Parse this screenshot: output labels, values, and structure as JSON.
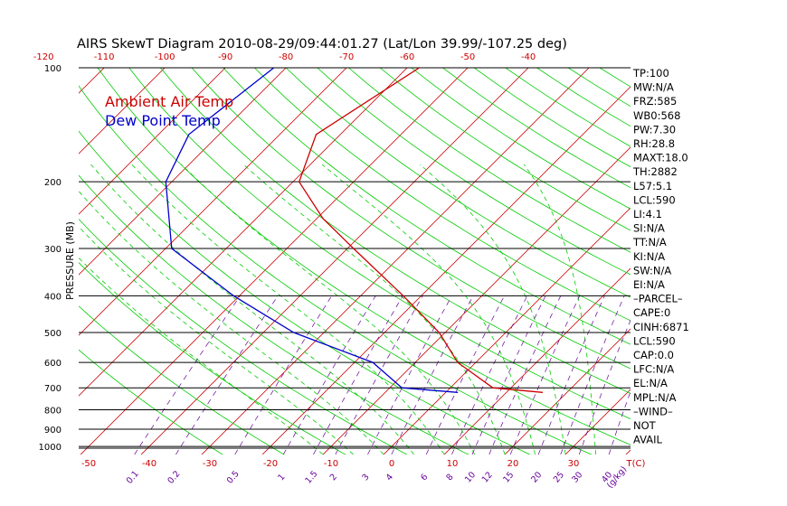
{
  "title": "AIRS SkewT Diagram 2010-08-29/09:44:01.27 (Lat/Lon 39.99/-107.25 deg)",
  "legend": {
    "ambient": "Ambient Air Temp",
    "dewpoint": "Dew Point Temp"
  },
  "colors": {
    "ambient": "#cc0000",
    "dewpoint": "#0000cc",
    "isotherm": "#cc0000",
    "dry_adiabat": "#00cc00",
    "moist_adiabat": "#00cc00",
    "mixing_ratio": "#660099",
    "isobar": "#000000",
    "top_temp_label": "#cc0000",
    "bottom_temp_label": "#cc0000",
    "mixing_label": "#660099"
  },
  "chart_data": {
    "type": "line",
    "title": "AIRS SkewT Diagram 2010-08-29/09:44:01.27 (Lat/Lon 39.99/-107.25 deg)",
    "ylabel": "PRESSURE (MB)",
    "yscale": "log",
    "ylim": [
      1050,
      100
    ],
    "xlim_bottom_temp_c": [
      -50,
      40
    ],
    "pressure_ticks": [
      100,
      200,
      300,
      400,
      500,
      600,
      700,
      800,
      900,
      1000
    ],
    "bottom_temp_ticks": [
      "-50",
      "-40",
      "-30",
      "-20",
      "-10",
      "0",
      "10",
      "20",
      "30",
      "T(C)"
    ],
    "top_temp_ticks": [
      "-120",
      "-110",
      "-100",
      "-90",
      "-80",
      "-70",
      "-60",
      "-50",
      "-40"
    ],
    "mixing_ratio_ticks": [
      "0.1",
      "0.2",
      "0.5",
      "1",
      "1.5",
      "2",
      "3",
      "4",
      "6",
      "8",
      "10",
      "12",
      "15",
      "20",
      "25",
      "30",
      "40",
      "(g/kg)"
    ],
    "series": [
      {
        "name": "Ambient Air Temp",
        "points": [
          {
            "p": 100,
            "t": -58
          },
          {
            "p": 150,
            "t": -64
          },
          {
            "p": 200,
            "t": -59
          },
          {
            "p": 250,
            "t": -49
          },
          {
            "p": 300,
            "t": -39
          },
          {
            "p": 400,
            "t": -23
          },
          {
            "p": 500,
            "t": -11
          },
          {
            "p": 600,
            "t": -3
          },
          {
            "p": 700,
            "t": 7
          },
          {
            "p": 720,
            "t": 16
          }
        ]
      },
      {
        "name": "Dew Point Temp",
        "points": [
          {
            "p": 100,
            "t": -82
          },
          {
            "p": 150,
            "t": -85
          },
          {
            "p": 200,
            "t": -81
          },
          {
            "p": 300,
            "t": -69
          },
          {
            "p": 400,
            "t": -51
          },
          {
            "p": 500,
            "t": -35
          },
          {
            "p": 600,
            "t": -17
          },
          {
            "p": 700,
            "t": -8
          },
          {
            "p": 720,
            "t": 2
          }
        ]
      }
    ],
    "grid": true,
    "legend_position": "top-left"
  },
  "indices": [
    {
      "label": "TP:100"
    },
    {
      "label": "MW:N/A"
    },
    {
      "label": "FRZ:585"
    },
    {
      "label": "WB0:568"
    },
    {
      "label": "PW:7.30"
    },
    {
      "label": "RH:28.8"
    },
    {
      "label": "MAXT:18.0"
    },
    {
      "label": "TH:2882"
    },
    {
      "label": "L57:5.1"
    },
    {
      "label": "LCL:590"
    },
    {
      "label": "LI:4.1"
    },
    {
      "label": "SI:N/A"
    },
    {
      "label": "TT:N/A"
    },
    {
      "label": "KI:N/A"
    },
    {
      "label": "SW:N/A"
    },
    {
      "label": "EI:N/A"
    },
    {
      "label": "–PARCEL–"
    },
    {
      "label": "CAPE:0"
    },
    {
      "label": "CINH:6871"
    },
    {
      "label": "LCL:590"
    },
    {
      "label": "CAP:0.0"
    },
    {
      "label": "LFC:N/A"
    },
    {
      "label": "EL:N/A"
    },
    {
      "label": "MPL:N/A"
    },
    {
      "label": "–WIND–"
    },
    {
      "label": " NOT"
    },
    {
      "label": "AVAIL"
    }
  ]
}
